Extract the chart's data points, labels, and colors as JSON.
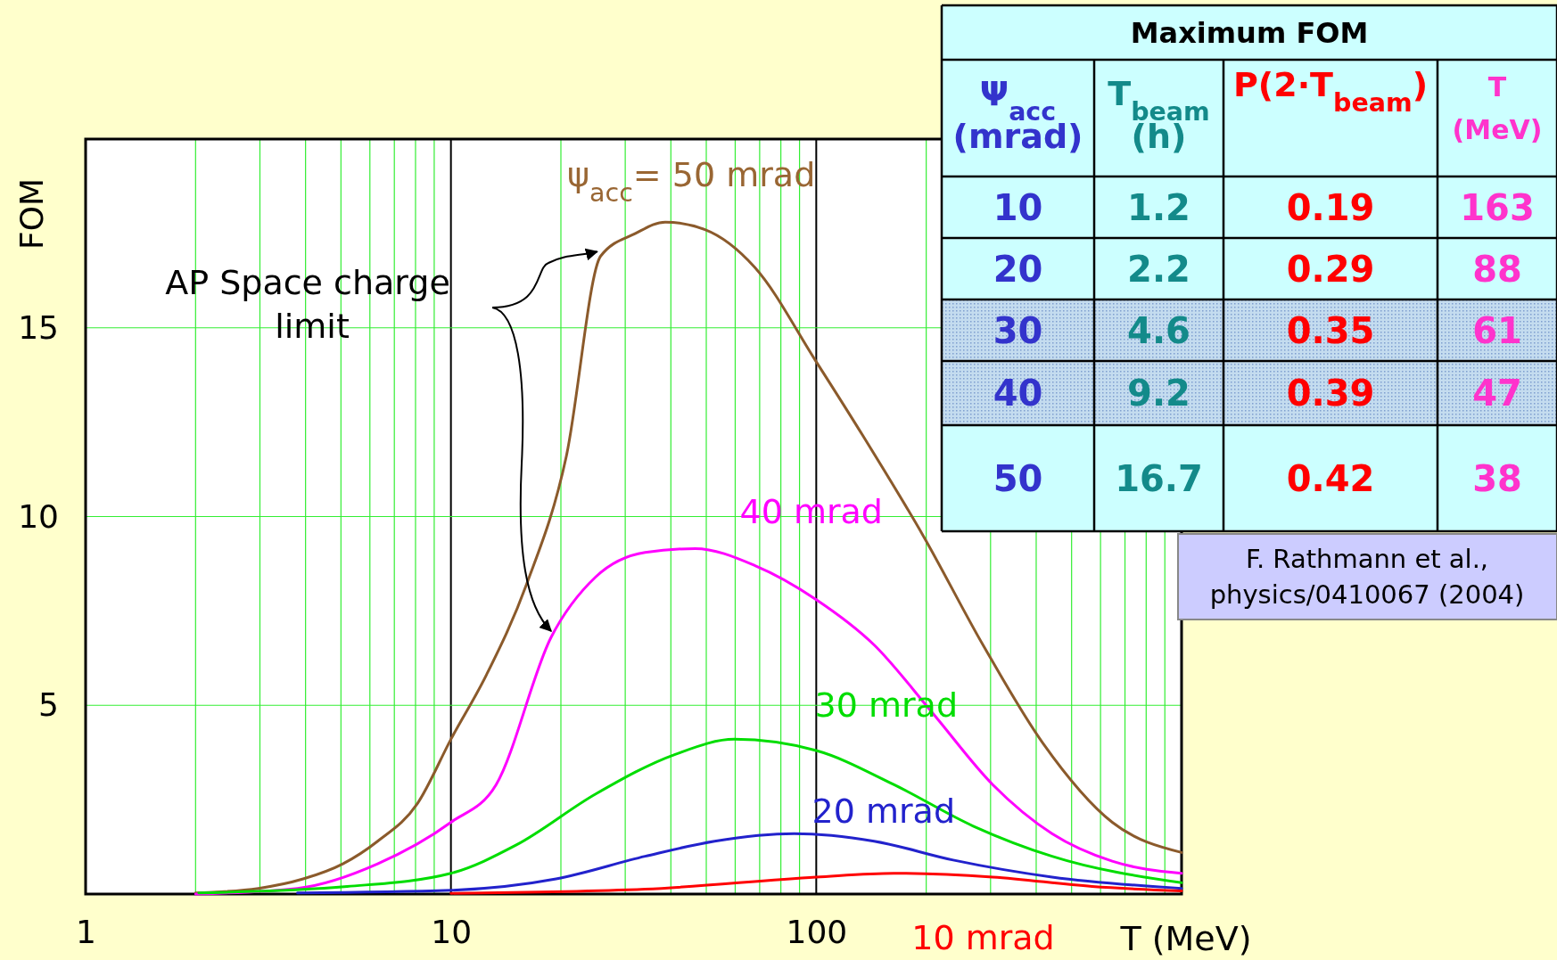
{
  "chart_data": [
    {
      "type": "line",
      "xlabel": "T (MeV)",
      "ylabel": "FOM",
      "log": "x",
      "grid": true,
      "marker": "none",
      "line_style": "solid",
      "xlim": [
        1,
        1000
      ],
      "ylim": [
        0,
        20
      ],
      "xticks": [
        1,
        {
          "value": 2,
          "label": null
        },
        {
          "value": 3,
          "label": null
        },
        {
          "value": 4,
          "label": null
        },
        {
          "value": 5,
          "label": null
        },
        {
          "value": 6,
          "label": null
        },
        {
          "value": 7,
          "label": null
        },
        {
          "value": 8,
          "label": null
        },
        {
          "value": 9,
          "label": null
        },
        10,
        {
          "value": 20,
          "label": null
        },
        {
          "value": 30,
          "label": null
        },
        {
          "value": 40,
          "label": null
        },
        {
          "value": 50,
          "label": null
        },
        {
          "value": 60,
          "label": null
        },
        {
          "value": 70,
          "label": null
        },
        {
          "value": 80,
          "label": null
        },
        {
          "value": 90,
          "label": null
        },
        100,
        {
          "value": 200,
          "label": null
        },
        {
          "value": 300,
          "label": null
        },
        {
          "value": 400,
          "label": null
        },
        {
          "value": 500,
          "label": null
        },
        {
          "value": 600,
          "label": null
        },
        {
          "value": 700,
          "label": null
        },
        {
          "value": 800,
          "label": null
        },
        {
          "value": 900,
          "label": null
        }
      ],
      "yticks": [
        5,
        10,
        15
      ],
      "series": [
        {
          "name": "ψ$_{acc}$= 50 mrad",
          "color": "#8b5a2b",
          "x": [
            2,
            2.97,
            3.94,
            5.06,
            6.3,
            8.1,
            10,
            12.5,
            16.1,
            20.7,
            25.7,
            32,
            38.6,
            49.6,
            67.9,
            100,
            135,
            196,
            286,
            417,
            646,
            1000
          ],
          "values": [
            0.03,
            0.15,
            0.4,
            0.8,
            1.4,
            2.4,
            4.1,
            5.8,
            8.2,
            11.6,
            16.9,
            17.5,
            17.8,
            17.6,
            16.6,
            14.1,
            12.1,
            9.5,
            6.6,
            4.0,
            1.9,
            1.1
          ]
        },
        {
          "name": "40 mrad",
          "color": "#ff00ff",
          "x": [
            2,
            3.8,
            6.3,
            10,
            13.3,
            18.8,
            24.9,
            34,
            46.6,
            68,
            100,
            144,
            208,
            304,
            442,
            646,
            1000
          ],
          "values": [
            0,
            0.15,
            0.8,
            1.9,
            2.9,
            6.8,
            8.4,
            9.05,
            9.15,
            8.7,
            7.8,
            6.6,
            4.8,
            2.9,
            1.6,
            0.87,
            0.55
          ]
        },
        {
          "name": "30 mrad",
          "color": "#00dd00",
          "x": [
            2.04,
            5.2,
            10,
            15.1,
            24.9,
            41.1,
            59.7,
            100,
            163,
            269,
            442,
            1000
          ],
          "values": [
            0.03,
            0.2,
            0.55,
            1.3,
            2.65,
            3.7,
            4.1,
            3.8,
            2.9,
            1.8,
            1.0,
            0.3
          ]
        },
        {
          "name": "20 mrad",
          "color": "#2222cc",
          "x": [
            3.8,
            10,
            19.4,
            34,
            52.7,
            87,
            144,
            237,
            442,
            1000
          ],
          "values": [
            0.03,
            0.1,
            0.4,
            1.0,
            1.4,
            1.6,
            1.4,
            0.9,
            0.45,
            0.15
          ]
        },
        {
          "name": "10 mrad",
          "color": "#ff0000",
          "x": [
            10,
            34,
            100,
            163,
            304,
            569,
            1000
          ],
          "values": [
            0.02,
            0.13,
            0.45,
            0.55,
            0.45,
            0.2,
            0.08
          ]
        }
      ],
      "annotations": [
        {
          "text": "AP Space charge limit",
          "x": 25.7,
          "y": 16.9
        }
      ]
    },
    {
      "type": "heatmap",
      "title": "Maximum FOM",
      "ylabel": "Ψ$_{acc}$ (mrad)",
      "categories": [
        "T$_{beam}$ (h)",
        "P(2·T$_{beam}$)",
        "T (MeV)"
      ],
      "y_categories": [
        "10",
        "20",
        "30",
        "40",
        "50"
      ],
      "colors": [
        "#3333cc",
        "#138a8a",
        "#ff0000",
        "#ff33cc"
      ],
      "cells": [
        [
          1.2,
          0.19,
          163
        ],
        [
          2.2,
          0.29,
          88
        ],
        [
          4.6,
          0.35,
          61
        ],
        [
          9.2,
          0.39,
          47
        ],
        [
          16.7,
          0.42,
          38
        ]
      ],
      "data_labels": true,
      "annotations": [
        "F. Rathmann et al., physics/0410067 (2004)"
      ]
    }
  ]
}
